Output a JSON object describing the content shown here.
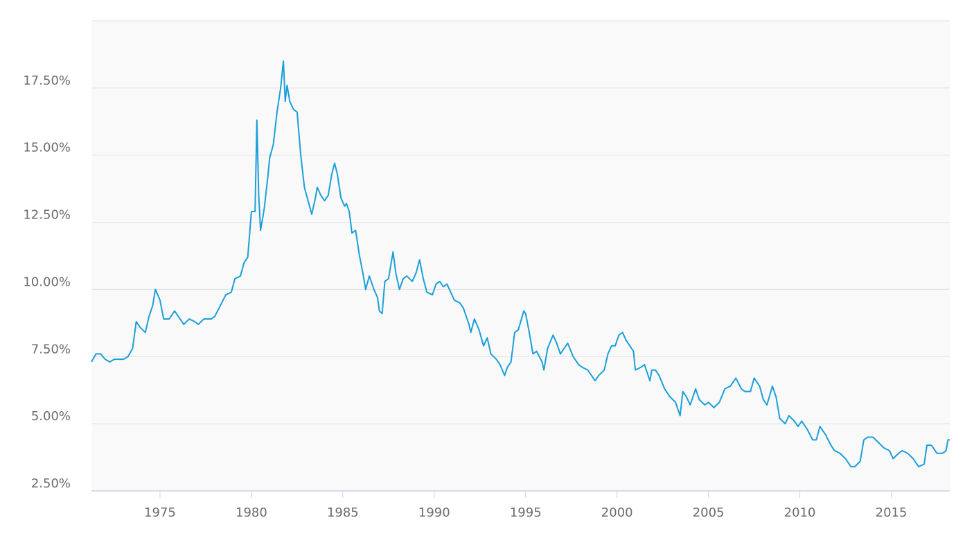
{
  "chart_data": {
    "type": "line",
    "color": "#1a9fd9",
    "grid": true,
    "xlim": [
      1971.25,
      2018.2
    ],
    "xticks": [
      1975,
      1980,
      1985,
      1990,
      1995,
      2000,
      2005,
      2010,
      2015
    ],
    "ylim": [
      2.5,
      20
    ],
    "yticks": [
      {
        "value": 2.5,
        "label": "2.50%"
      },
      {
        "value": 5,
        "label": "5.00%"
      },
      {
        "value": 7.5,
        "label": "7.50%"
      },
      {
        "value": 10,
        "label": "10.00%"
      },
      {
        "value": 12.5,
        "label": "12.50%"
      },
      {
        "value": 15,
        "label": "15.00%"
      },
      {
        "value": 17.5,
        "label": "17.50%"
      }
    ],
    "x": [
      1971.25,
      1971.5,
      1971.75,
      1972.0,
      1972.25,
      1972.5,
      1972.75,
      1973.0,
      1973.25,
      1973.5,
      1973.7,
      1973.9,
      1974.2,
      1974.4,
      1974.6,
      1974.75,
      1975.0,
      1975.2,
      1975.5,
      1975.8,
      1976.0,
      1976.3,
      1976.6,
      1976.9,
      1977.1,
      1977.4,
      1977.8,
      1978.0,
      1978.3,
      1978.6,
      1978.9,
      1979.1,
      1979.4,
      1979.6,
      1979.8,
      1980.0,
      1980.2,
      1980.3,
      1980.4,
      1980.5,
      1980.7,
      1980.9,
      1981.0,
      1981.2,
      1981.4,
      1981.6,
      1981.75,
      1981.85,
      1981.95,
      1982.1,
      1982.3,
      1982.5,
      1982.7,
      1982.9,
      1983.1,
      1983.3,
      1983.5,
      1983.6,
      1983.8,
      1984.0,
      1984.2,
      1984.4,
      1984.55,
      1984.7,
      1984.9,
      1985.1,
      1985.2,
      1985.35,
      1985.5,
      1985.7,
      1985.9,
      1986.1,
      1986.25,
      1986.45,
      1986.7,
      1986.9,
      1987.0,
      1987.15,
      1987.3,
      1987.5,
      1987.75,
      1987.9,
      1988.1,
      1988.3,
      1988.5,
      1988.8,
      1989.0,
      1989.2,
      1989.4,
      1989.6,
      1989.9,
      1990.1,
      1990.3,
      1990.5,
      1990.7,
      1990.9,
      1991.1,
      1991.4,
      1991.6,
      1991.9,
      1992.0,
      1992.2,
      1992.45,
      1992.7,
      1992.9,
      1993.1,
      1993.4,
      1993.6,
      1993.85,
      1994.0,
      1994.2,
      1994.4,
      1994.6,
      1994.9,
      1995.0,
      1995.2,
      1995.4,
      1995.6,
      1995.9,
      1996.0,
      1996.2,
      1996.5,
      1996.7,
      1996.9,
      1997.1,
      1997.3,
      1997.6,
      1997.9,
      1998.1,
      1998.4,
      1998.7,
      1998.8,
      1999.0,
      1999.3,
      1999.5,
      1999.7,
      1999.9,
      2000.1,
      2000.3,
      2000.5,
      2000.7,
      2000.9,
      2001.0,
      2001.3,
      2001.5,
      2001.8,
      2001.9,
      2002.1,
      2002.3,
      2002.6,
      2002.9,
      2003.2,
      2003.45,
      2003.6,
      2003.8,
      2004.0,
      2004.3,
      2004.5,
      2004.8,
      2005.0,
      2005.3,
      2005.6,
      2005.9,
      2006.2,
      2006.5,
      2006.8,
      2007.0,
      2007.3,
      2007.5,
      2007.8,
      2008.0,
      2008.2,
      2008.5,
      2008.7,
      2008.9,
      2009.2,
      2009.4,
      2009.7,
      2009.9,
      2010.1,
      2010.4,
      2010.7,
      2010.9,
      2011.1,
      2011.4,
      2011.7,
      2011.9,
      2012.2,
      2012.5,
      2012.8,
      2013.0,
      2013.3,
      2013.5,
      2013.7,
      2014.0,
      2014.3,
      2014.6,
      2014.9,
      2015.1,
      2015.4,
      2015.6,
      2015.9,
      2016.2,
      2016.5,
      2016.8,
      2016.95,
      2017.2,
      2017.5,
      2017.8,
      2018.0,
      2018.1,
      2018.2
    ],
    "values": [
      7.3,
      7.6,
      7.6,
      7.4,
      7.3,
      7.4,
      7.4,
      7.4,
      7.5,
      7.8,
      8.8,
      8.6,
      8.4,
      9.0,
      9.4,
      10.0,
      9.6,
      8.9,
      8.9,
      9.2,
      9.0,
      8.7,
      8.9,
      8.8,
      8.7,
      8.9,
      8.9,
      9.0,
      9.4,
      9.8,
      9.9,
      10.4,
      10.5,
      11.0,
      11.2,
      12.9,
      12.9,
      16.3,
      13.5,
      12.2,
      13.0,
      14.2,
      14.9,
      15.4,
      16.6,
      17.5,
      18.5,
      17.0,
      17.6,
      17.0,
      16.7,
      16.6,
      15.0,
      13.8,
      13.3,
      12.8,
      13.4,
      13.8,
      13.5,
      13.3,
      13.5,
      14.3,
      14.7,
      14.3,
      13.4,
      13.1,
      13.2,
      12.9,
      12.1,
      12.2,
      11.3,
      10.6,
      10.0,
      10.5,
      10.0,
      9.7,
      9.2,
      9.1,
      10.3,
      10.4,
      11.4,
      10.6,
      10.0,
      10.4,
      10.5,
      10.3,
      10.6,
      11.1,
      10.4,
      9.9,
      9.8,
      10.2,
      10.3,
      10.1,
      10.2,
      9.9,
      9.6,
      9.5,
      9.3,
      8.7,
      8.4,
      8.9,
      8.5,
      7.9,
      8.2,
      7.6,
      7.4,
      7.2,
      6.8,
      7.1,
      7.3,
      8.4,
      8.5,
      9.2,
      9.1,
      8.4,
      7.6,
      7.7,
      7.3,
      7.0,
      7.8,
      8.3,
      8.0,
      7.6,
      7.8,
      8.0,
      7.5,
      7.2,
      7.1,
      7.0,
      6.7,
      6.6,
      6.8,
      7.0,
      7.6,
      7.9,
      7.9,
      8.3,
      8.4,
      8.1,
      7.9,
      7.7,
      7.0,
      7.1,
      7.2,
      6.6,
      7.0,
      7.0,
      6.8,
      6.3,
      6.0,
      5.8,
      5.3,
      6.2,
      6.0,
      5.7,
      6.3,
      5.9,
      5.7,
      5.8,
      5.6,
      5.8,
      6.3,
      6.4,
      6.7,
      6.3,
      6.2,
      6.2,
      6.7,
      6.4,
      5.9,
      5.7,
      6.4,
      6.0,
      5.2,
      5.0,
      5.3,
      5.1,
      4.9,
      5.1,
      4.8,
      4.4,
      4.4,
      4.9,
      4.6,
      4.2,
      4.0,
      3.9,
      3.7,
      3.4,
      3.4,
      3.6,
      4.4,
      4.5,
      4.5,
      4.3,
      4.1,
      4.0,
      3.7,
      3.9,
      4.0,
      3.9,
      3.7,
      3.4,
      3.5,
      4.2,
      4.2,
      3.9,
      3.9,
      4.0,
      4.4,
      4.4
    ]
  }
}
